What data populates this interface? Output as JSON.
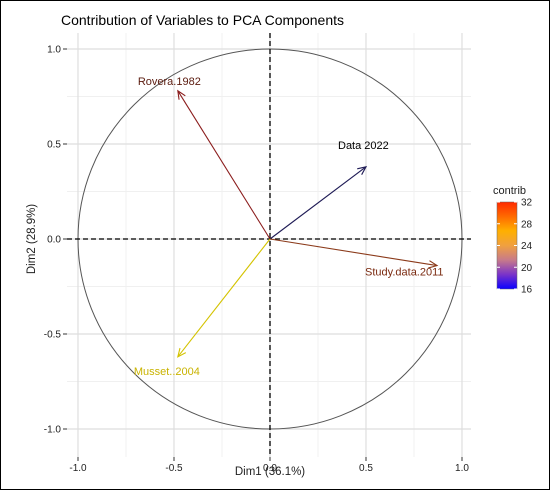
{
  "chart_data": {
    "type": "scatter",
    "subtype": "pca-variable-correlation-circle",
    "title": "Contribution of Variables to PCA Components",
    "xlabel": "Dim1 (36.1%)",
    "ylabel": "Dim2 (28.9%)",
    "xlim": [
      -1.0,
      1.0
    ],
    "ylim": [
      -1.0,
      1.0
    ],
    "xticks": [
      "-1.0",
      "-0.5",
      "0.0",
      "0.5",
      "1.0"
    ],
    "yticks": [
      "-1.0",
      "-0.5",
      "0.0",
      "0.5",
      "1.0"
    ],
    "grid": true,
    "variables": [
      {
        "label": "Rovera.1982",
        "x": -0.48,
        "y": 0.78,
        "contrib": 25,
        "color": "#8b1c1c",
        "label_color": "#5a1a0e"
      },
      {
        "label": "Data 2022",
        "x": 0.5,
        "y": 0.38,
        "contrib": 17,
        "color": "#1e1a55",
        "label_color": "#000000"
      },
      {
        "label": "Study.data.2011",
        "x": 0.87,
        "y": -0.14,
        "contrib": 31,
        "color": "#8b3a1a",
        "label_color": "#7a2a10"
      },
      {
        "label": "Musset..2004",
        "x": -0.48,
        "y": -0.62,
        "contrib": 23,
        "color": "#d4c300",
        "label_color": "#c9b300"
      }
    ],
    "legend": {
      "title": "contrib",
      "ticks": [
        32,
        28,
        24,
        20,
        16
      ],
      "range": [
        16,
        32
      ],
      "placement": "right",
      "colors": [
        "#0a00ff",
        "#7a33c9",
        "#c77a8a",
        "#f0a040",
        "#ffb000",
        "#ff6a00",
        "#ff2a00"
      ]
    }
  }
}
